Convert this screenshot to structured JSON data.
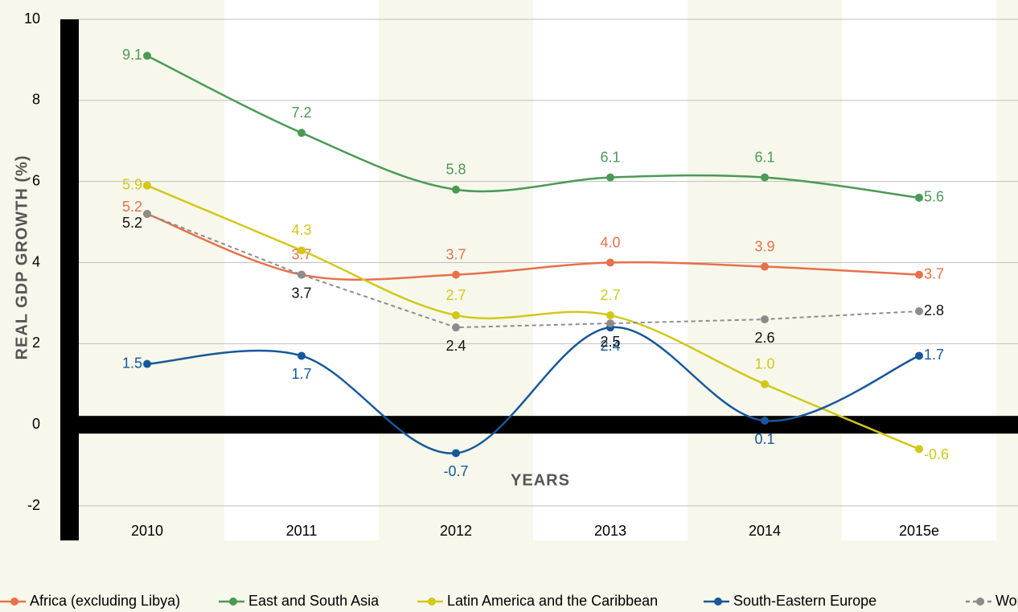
{
  "chart_data": {
    "type": "line",
    "ylabel": "REAL GDP GROWTH (%)",
    "xlabel": "YEARS",
    "categories": [
      "2010",
      "2011",
      "2012",
      "2013",
      "2014",
      "2015e"
    ],
    "ylim": [
      -2,
      10
    ],
    "yticks": [
      -2,
      0,
      2,
      4,
      6,
      8,
      10
    ],
    "grid": true,
    "series": [
      {
        "name": "Africa (excluding Libya)",
        "color": "#e8704a",
        "values": [
          5.2,
          3.7,
          3.7,
          4.0,
          3.9,
          3.7
        ],
        "value_labels": [
          "5.2",
          "3.7",
          "3.7",
          "4.0",
          "3.9",
          "3.7"
        ]
      },
      {
        "name": "East and South Asia",
        "color": "#4a9a55",
        "values": [
          9.1,
          7.2,
          5.8,
          6.1,
          6.1,
          5.6
        ],
        "value_labels": [
          "9.1",
          "7.2",
          "5.8",
          "6.1",
          "6.1",
          "5.6"
        ]
      },
      {
        "name": "Latin America and the Caribbean",
        "color": "#d2c81a",
        "values": [
          5.9,
          4.3,
          2.7,
          2.7,
          1.0,
          -0.6
        ],
        "value_labels": [
          "5.9",
          "4.3",
          "2.7",
          "2.7",
          "1.0",
          "-0.6"
        ]
      },
      {
        "name": "South-Eastern Europe",
        "color": "#17589a",
        "values": [
          1.5,
          1.7,
          -0.7,
          2.4,
          0.1,
          1.7
        ],
        "value_labels": [
          "1.5",
          "1.7",
          "-0.7",
          "2.4",
          "0.1",
          "1.7"
        ]
      },
      {
        "name": "World",
        "color": "#8c8c8c",
        "dashed": true,
        "values": [
          5.2,
          3.7,
          2.4,
          2.5,
          2.6,
          2.8
        ],
        "value_labels": [
          "5.2",
          "3.7",
          "2.4",
          "2.5",
          "2.6",
          "2.8"
        ]
      }
    ]
  }
}
